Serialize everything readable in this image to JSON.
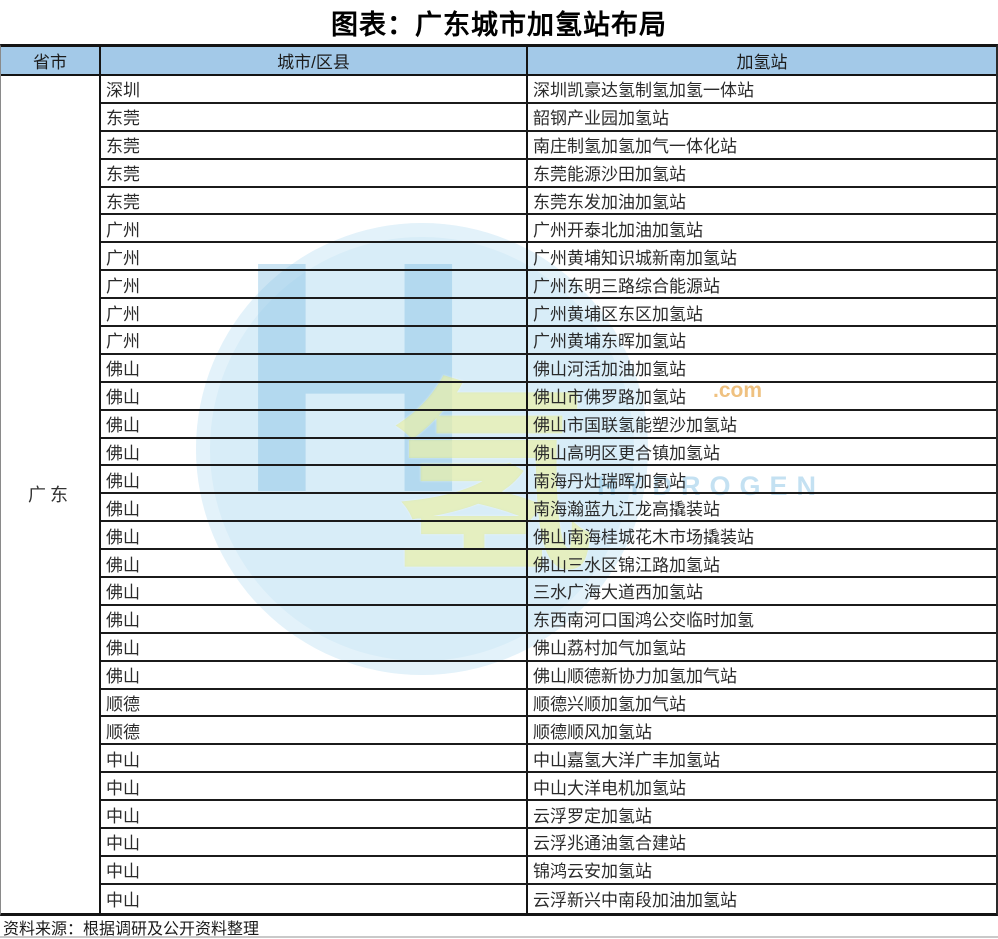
{
  "page": {
    "title": "图表：广东城市加氢站布局",
    "source_note": "资料来源：根据调研及公开资料整理"
  },
  "table": {
    "headers": {
      "province": "省市",
      "city": "城市/区县",
      "station": "加氢站"
    },
    "province": "广东",
    "rows": [
      {
        "city": "深圳",
        "station": "深圳凯豪达氢制氢加氢一体站"
      },
      {
        "city": "东莞",
        "station": "韶钢产业园加氢站"
      },
      {
        "city": "东莞",
        "station": "南庄制氢加氢加气一体化站"
      },
      {
        "city": "东莞",
        "station": "东莞能源沙田加氢站"
      },
      {
        "city": "东莞",
        "station": "东莞东发加油加氢站"
      },
      {
        "city": "广州",
        "station": "广州开泰北加油加氢站"
      },
      {
        "city": "广州",
        "station": "广州黄埔知识城新南加氢站"
      },
      {
        "city": "广州",
        "station": "广州东明三路综合能源站"
      },
      {
        "city": "广州",
        "station": "广州黄埔区东区加氢站"
      },
      {
        "city": "广州",
        "station": "广州黄埔东晖加氢站"
      },
      {
        "city": "佛山",
        "station": "佛山河活加油加氢站"
      },
      {
        "city": "佛山",
        "station": "佛山市佛罗路加氢站"
      },
      {
        "city": "佛山",
        "station": "佛山市国联氢能塑沙加氢站"
      },
      {
        "city": "佛山",
        "station": "佛山高明区更合镇加氢站"
      },
      {
        "city": "佛山",
        "station": "南海丹灶瑞晖加氢站"
      },
      {
        "city": "佛山",
        "station": "南海瀚蓝九江龙高撬装站"
      },
      {
        "city": "佛山",
        "station": "佛山南海桂城花木市场撬装站"
      },
      {
        "city": "佛山",
        "station": "佛山三水区锦江路加氢站"
      },
      {
        "city": "佛山",
        "station": "三水广海大道西加氢站"
      },
      {
        "city": "佛山",
        "station": "东西南河口国鸿公交临时加氢"
      },
      {
        "city": "佛山",
        "station": "佛山荔村加气加氢站"
      },
      {
        "city": "佛山",
        "station": "佛山顺德新协力加氢加气站"
      },
      {
        "city": "顺德",
        "station": "顺德兴顺加氢加气站"
      },
      {
        "city": "顺德",
        "station": "顺德顺风加氢站"
      },
      {
        "city": "中山",
        "station": "中山嘉氢大洋广丰加氢站"
      },
      {
        "city": "中山",
        "station": "中山大洋电机加氢站"
      },
      {
        "city": "中山",
        "station": "云浮罗定加氢站"
      },
      {
        "city": "中山",
        "station": "云浮兆通油氢合建站"
      },
      {
        "city": "中山",
        "station": "锦鸿云安加氢站"
      },
      {
        "city": "中山",
        "station": "云浮新兴中南段加油加氢站"
      }
    ]
  },
  "watermark": {
    "letter": "H",
    "char": "氢",
    "brand_text": "HYDROGEN",
    "suffix_text": ".com"
  },
  "colors": {
    "header_bg": "#A3C9E8",
    "border": "#141414",
    "watermark_blue": "#7DBCE2",
    "watermark_yellow": "#DCE46E",
    "watermark_orange": "#E6A03C"
  }
}
